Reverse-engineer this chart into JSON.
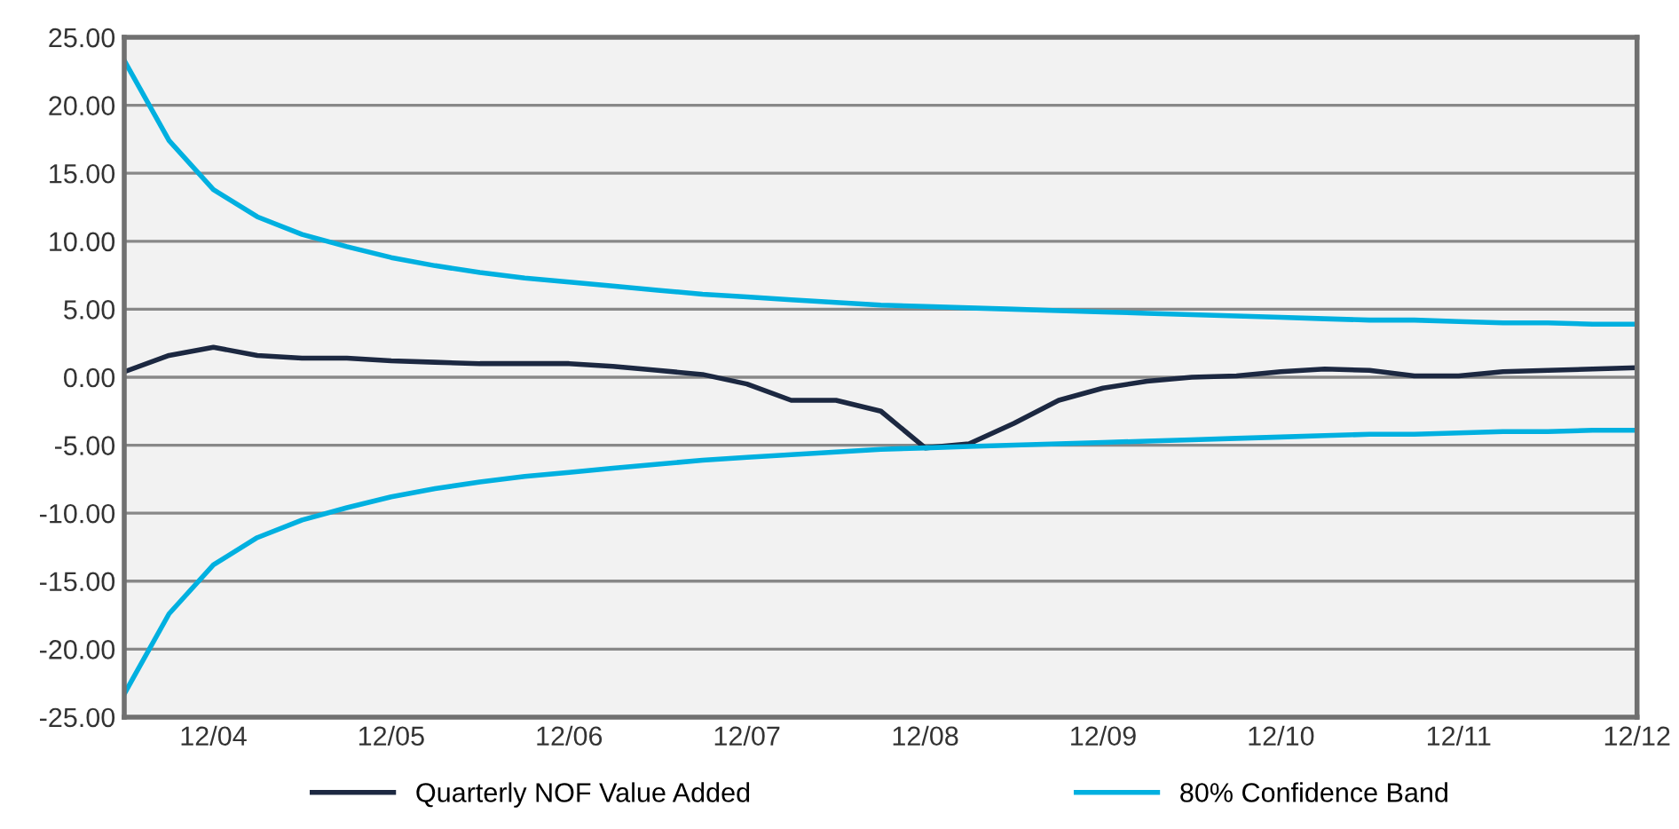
{
  "chart_data": {
    "type": "line",
    "x": [
      "2004-06",
      "2004-09",
      "2004-12",
      "2005-03",
      "2005-06",
      "2005-09",
      "2005-12",
      "2006-03",
      "2006-06",
      "2006-09",
      "2006-12",
      "2007-03",
      "2007-06",
      "2007-09",
      "2007-12",
      "2008-03",
      "2008-06",
      "2008-09",
      "2008-12",
      "2009-03",
      "2009-06",
      "2009-09",
      "2009-12",
      "2010-03",
      "2010-06",
      "2010-09",
      "2010-12",
      "2011-03",
      "2011-06",
      "2011-09",
      "2011-12",
      "2012-03",
      "2012-06",
      "2012-09",
      "2012-12"
    ],
    "series": [
      {
        "name": "Quarterly NOF Value Added",
        "color": "#1c2841",
        "values": [
          0.4,
          1.6,
          2.2,
          1.6,
          1.4,
          1.4,
          1.2,
          1.1,
          1.0,
          1.0,
          1.0,
          0.8,
          0.5,
          0.2,
          -0.5,
          -1.7,
          -1.7,
          -2.5,
          -5.2,
          -4.9,
          -3.4,
          -1.7,
          -0.8,
          -0.3,
          0.0,
          0.1,
          0.4,
          0.6,
          0.5,
          0.1,
          0.1,
          0.4,
          0.5,
          0.6,
          0.7
        ]
      },
      {
        "name": "80% Confidence Band",
        "color": "#00b0e0",
        "values": [
          23.3,
          17.4,
          13.8,
          11.8,
          10.5,
          9.6,
          8.8,
          8.2,
          7.7,
          7.3,
          7.0,
          6.7,
          6.4,
          6.1,
          5.9,
          5.7,
          5.5,
          5.3,
          5.2,
          5.1,
          5.0,
          4.9,
          4.8,
          4.7,
          4.6,
          4.5,
          4.4,
          4.3,
          4.2,
          4.2,
          4.1,
          4.0,
          4.0,
          3.9,
          3.9
        ]
      },
      {
        "color": "#00b0e0",
        "values": [
          -23.3,
          -17.4,
          -13.8,
          -11.8,
          -10.5,
          -9.6,
          -8.8,
          -8.2,
          -7.7,
          -7.3,
          -7.0,
          -6.7,
          -6.4,
          -6.1,
          -5.9,
          -5.7,
          -5.5,
          -5.3,
          -5.2,
          -5.1,
          -5.0,
          -4.9,
          -4.8,
          -4.7,
          -4.6,
          -4.5,
          -4.4,
          -4.3,
          -4.2,
          -4.2,
          -4.1,
          -4.0,
          -4.0,
          -3.9,
          -3.9
        ]
      }
    ],
    "xlim": [
      "2004-06",
      "2012-12"
    ],
    "xticks": [
      {
        "value": "2004-12",
        "label": "12/04"
      },
      {
        "value": "2005-12",
        "label": "12/05"
      },
      {
        "value": "2006-12",
        "label": "12/06"
      },
      {
        "value": "2007-12",
        "label": "12/07"
      },
      {
        "value": "2008-12",
        "label": "12/08"
      },
      {
        "value": "2009-12",
        "label": "12/09"
      },
      {
        "value": "2010-12",
        "label": "12/10"
      },
      {
        "value": "2011-12",
        "label": "12/11"
      },
      {
        "value": "2012-12",
        "label": "12/12"
      }
    ],
    "ylim": [
      -25,
      25
    ],
    "yticks": [
      {
        "value": -25,
        "label": "-25.00"
      },
      {
        "value": -20,
        "label": "-20.00"
      },
      {
        "value": -15,
        "label": "-15.00"
      },
      {
        "value": -10,
        "label": "-10.00"
      },
      {
        "value": -5,
        "label": "-5.00"
      },
      {
        "value": 0,
        "label": "0.00"
      },
      {
        "value": 5,
        "label": "5.00"
      },
      {
        "value": 10,
        "label": "10.00"
      },
      {
        "value": 15,
        "label": "15.00"
      },
      {
        "value": 20,
        "label": "20.00"
      },
      {
        "value": 25,
        "label": "25.00"
      }
    ],
    "grid": "y",
    "legend": "bottom",
    "marker": "none",
    "line_style": "solid"
  }
}
